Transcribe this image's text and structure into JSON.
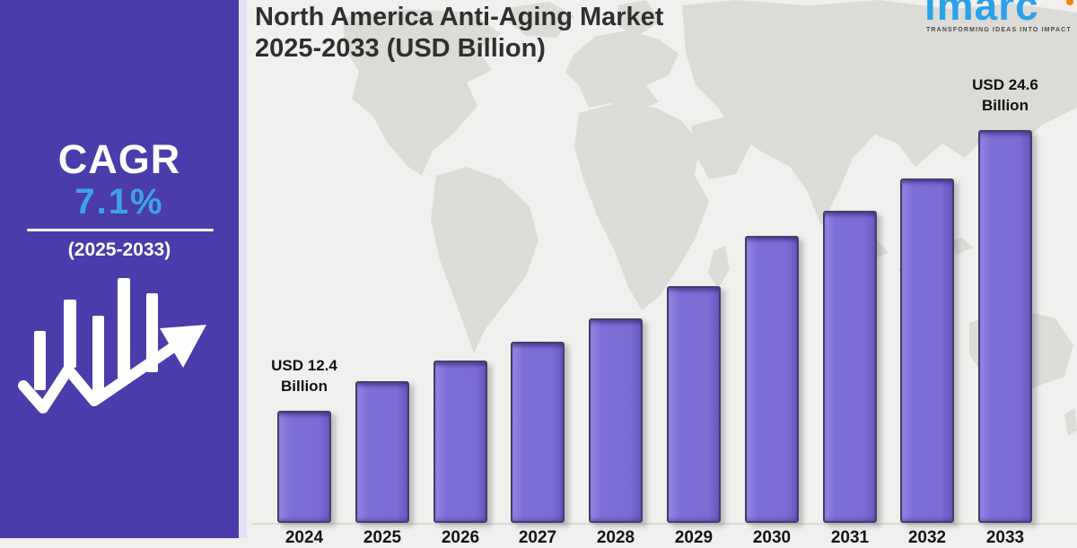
{
  "title": {
    "line1": "North America Anti-Aging Market",
    "line2": "2025-2033 (USD Billion)"
  },
  "logo": {
    "name": "imarc",
    "tagline": "TRANSFORMING IDEAS INTO IMPACT"
  },
  "sidebar": {
    "cagr_label": "CAGR",
    "cagr_value": "7.1%",
    "period": "(2025-2033)"
  },
  "colors": {
    "sidebar_purple": "#4a3cab",
    "accent_blue": "#3fa3e3",
    "bar_fill": "#7b6cd6",
    "bar_border": "#463c6e",
    "background": "#f1f0ee",
    "map_gray": "#dcdbd8",
    "title_text": "#2f2f2f",
    "logo_blue": "#2ba1e8",
    "logo_orange": "#f6821f"
  },
  "chart_data": {
    "type": "bar",
    "title": "North America Anti-Aging Market 2025-2033 (USD Billion)",
    "unit": "USD Billion",
    "categories": [
      "2024",
      "2025",
      "2026",
      "2027",
      "2028",
      "2029",
      "2030",
      "2031",
      "2032",
      "2033"
    ],
    "values": [
      12.4,
      13.7,
      14.6,
      15.4,
      16.4,
      17.8,
      20.0,
      21.1,
      22.5,
      24.6
    ],
    "values_estimated_except_first_last": true,
    "annotations": [
      {
        "year": "2024",
        "text": "USD 12.4 Billion"
      },
      {
        "year": "2033",
        "text": "USD 24.6 Billion"
      }
    ],
    "cagr": "7.1%",
    "cagr_period": "(2025-2033)",
    "grid": false,
    "legend": false,
    "baseline_truncated": true,
    "x_axis_labels_partially_cropped": true
  }
}
